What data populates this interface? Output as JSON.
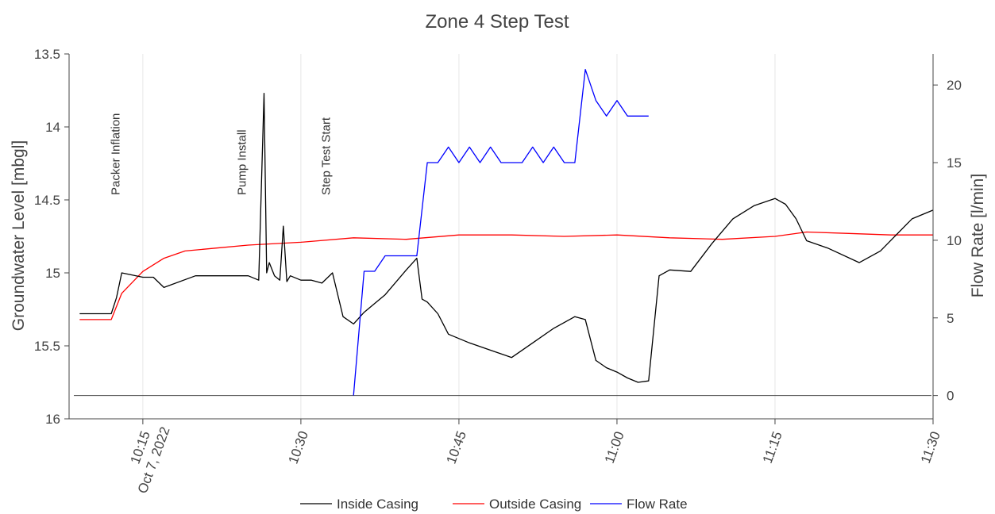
{
  "chart_data": {
    "type": "line",
    "title": "Zone 4 Step Test",
    "xlabel": "",
    "ylabel": "Groundwater Level [mbgl]",
    "y2label": "Flow Rate [l/min]",
    "x_range": [
      "10:08",
      "11:30"
    ],
    "ylim": [
      16.0,
      13.5
    ],
    "y_reversed": true,
    "y2lim": [
      -1.5,
      22
    ],
    "grid": "vertical",
    "legend_position": "bottom-center",
    "x_ticks": [
      {
        "time": "10:15",
        "label": "10:15",
        "sublabel": "Oct 7, 2022"
      },
      {
        "time": "10:30",
        "label": "10:30",
        "sublabel": ""
      },
      {
        "time": "10:45",
        "label": "10:45",
        "sublabel": ""
      },
      {
        "time": "11:00",
        "label": "11:00",
        "sublabel": ""
      },
      {
        "time": "11:15",
        "label": "11:15",
        "sublabel": ""
      },
      {
        "time": "11:30",
        "label": "11:30",
        "sublabel": ""
      }
    ],
    "y_ticks": [
      {
        "value": 13.5,
        "label": "13.5"
      },
      {
        "value": 14.0,
        "label": "14"
      },
      {
        "value": 14.5,
        "label": "14.5"
      },
      {
        "value": 15.0,
        "label": "15"
      },
      {
        "value": 15.5,
        "label": "15.5"
      },
      {
        "value": 16.0,
        "label": "16"
      }
    ],
    "y2_ticks": [
      {
        "value": 0,
        "label": "0"
      },
      {
        "value": 5,
        "label": "5"
      },
      {
        "value": 10,
        "label": "10"
      },
      {
        "value": 15,
        "label": "15"
      },
      {
        "value": 20,
        "label": "20"
      }
    ],
    "annotations": [
      {
        "time": "10:13",
        "text": "Packer Inflation"
      },
      {
        "time": "10:25",
        "text": "Pump Install"
      },
      {
        "time": "10:33",
        "text": "Step Test Start"
      }
    ],
    "reference_lines": [
      {
        "axis": "y2",
        "value": 0,
        "color": "#444444"
      }
    ],
    "series": [
      {
        "name": "Inside Casing",
        "axis": "y",
        "color": "#000000",
        "x": [
          "10:09",
          "10:11",
          "10:12",
          "10:12:30",
          "10:13",
          "10:15",
          "10:16",
          "10:17",
          "10:20",
          "10:25",
          "10:26",
          "10:26:30",
          "10:26:45",
          "10:27",
          "10:27:30",
          "10:28",
          "10:28:20",
          "10:28:40",
          "10:29",
          "10:30",
          "10:31",
          "10:32",
          "10:33",
          "10:34",
          "10:35",
          "10:36",
          "10:38",
          "10:40",
          "10:41",
          "10:41:30",
          "10:42",
          "10:43",
          "10:44",
          "10:46",
          "10:48",
          "10:50",
          "10:52",
          "10:54",
          "10:56",
          "10:57",
          "10:58",
          "10:59",
          "11:00",
          "11:01",
          "11:02",
          "11:03",
          "11:04",
          "11:05",
          "11:07",
          "11:09",
          "11:11",
          "11:13",
          "11:15",
          "11:16",
          "11:17",
          "11:18",
          "11:20",
          "11:23",
          "11:25",
          "11:28",
          "11:30"
        ],
        "y": [
          15.28,
          15.28,
          15.28,
          15.17,
          15.0,
          15.03,
          15.03,
          15.1,
          15.02,
          15.02,
          15.05,
          13.77,
          15.0,
          14.93,
          15.02,
          15.05,
          14.68,
          15.06,
          15.02,
          15.05,
          15.05,
          15.07,
          15.0,
          15.3,
          15.35,
          15.27,
          15.15,
          14.98,
          14.9,
          15.18,
          15.2,
          15.28,
          15.42,
          15.48,
          15.53,
          15.58,
          15.48,
          15.38,
          15.3,
          15.32,
          15.6,
          15.65,
          15.68,
          15.72,
          15.75,
          15.74,
          15.02,
          14.98,
          14.99,
          14.8,
          14.63,
          14.54,
          14.49,
          14.53,
          14.63,
          14.78,
          14.83,
          14.93,
          14.85,
          14.63,
          14.57
        ]
      },
      {
        "name": "Outside Casing",
        "axis": "y",
        "color": "#ff0000",
        "x": [
          "10:09",
          "10:12",
          "10:13",
          "10:15",
          "10:17",
          "10:19",
          "10:22",
          "10:25",
          "10:30",
          "10:35",
          "10:40",
          "10:45",
          "10:50",
          "10:55",
          "11:00",
          "11:05",
          "11:10",
          "11:15",
          "11:18",
          "11:22",
          "11:26",
          "11:30"
        ],
        "y": [
          15.32,
          15.32,
          15.14,
          14.99,
          14.9,
          14.85,
          14.83,
          14.81,
          14.79,
          14.76,
          14.77,
          14.74,
          14.74,
          14.75,
          14.74,
          14.76,
          14.77,
          14.75,
          14.72,
          14.73,
          14.74,
          14.74
        ]
      },
      {
        "name": "Flow Rate",
        "axis": "y2",
        "color": "#0000ff",
        "x": [
          "10:35",
          "10:36",
          "10:37",
          "10:38",
          "10:41",
          "10:42",
          "10:43",
          "10:44",
          "10:45",
          "10:46",
          "10:47",
          "10:48",
          "10:49",
          "10:50",
          "10:51",
          "10:52",
          "10:53",
          "10:54",
          "10:55",
          "10:56",
          "10:57",
          "10:58",
          "10:59",
          "11:00",
          "11:01",
          "11:02",
          "11:03"
        ],
        "y": [
          0,
          8,
          8,
          9,
          9,
          15,
          15,
          16,
          15,
          16,
          15,
          16,
          15,
          15,
          15,
          16,
          15,
          16,
          15,
          15,
          21,
          19,
          18,
          19,
          18,
          18,
          18
        ]
      }
    ]
  }
}
